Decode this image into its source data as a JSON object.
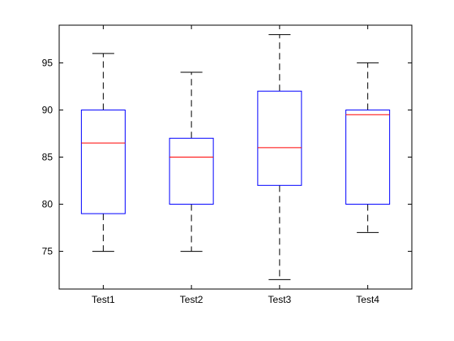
{
  "chart_data": {
    "type": "box",
    "ylim": [
      71,
      99
    ],
    "yticks": [
      75,
      80,
      85,
      90,
      95
    ],
    "ytick_labels": [
      "75",
      "80",
      "85",
      "90",
      "95"
    ],
    "categories": [
      "Test1",
      "Test2",
      "Test3",
      "Test4"
    ],
    "boxes": [
      {
        "label": "Test1",
        "whisker_low": 75,
        "q1": 79,
        "median": 86.5,
        "q3": 90,
        "whisker_high": 96
      },
      {
        "label": "Test2",
        "whisker_low": 75,
        "q1": 80,
        "median": 85,
        "q3": 87,
        "whisker_high": 94
      },
      {
        "label": "Test3",
        "whisker_low": 72,
        "q1": 82,
        "median": 86,
        "q3": 92,
        "whisker_high": 98
      },
      {
        "label": "Test4",
        "whisker_low": 77,
        "q1": 80,
        "median": 89.5,
        "q3": 90,
        "whisker_high": 95
      }
    ],
    "colors": {
      "box": "#0000ff",
      "median": "#ff0000",
      "whisker": "#000000",
      "axes": "#000000"
    },
    "grid": false
  }
}
